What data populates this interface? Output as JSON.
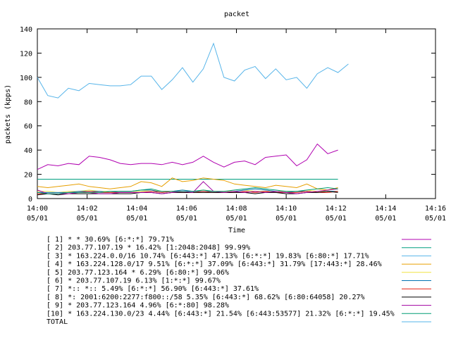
{
  "chart_data": {
    "type": "line",
    "title": "packet",
    "xlabel": "Time",
    "ylabel": "packets (kpps)",
    "ylim": [
      0,
      140
    ],
    "yticks": [
      "0",
      "20",
      "40",
      "60",
      "80",
      "100",
      "120",
      "140"
    ],
    "xlim": [
      "14:00",
      "14:16"
    ],
    "xticks": [
      {
        "time": "14:00",
        "date": "05/01"
      },
      {
        "time": "14:02",
        "date": "05/01"
      },
      {
        "time": "14:04",
        "date": "05/01"
      },
      {
        "time": "14:06",
        "date": "05/01"
      },
      {
        "time": "14:08",
        "date": "05/01"
      },
      {
        "time": "14:10",
        "date": "05/01"
      },
      {
        "time": "14:12",
        "date": "05/01"
      },
      {
        "time": "14:14",
        "date": "05/01"
      },
      {
        "time": "14:16",
        "date": "05/01"
      }
    ],
    "grid": false,
    "legend_position": "bottom",
    "x_minutes": [
      0,
      0.42,
      0.83,
      1.25,
      1.67,
      2.08,
      2.5,
      2.92,
      3.33,
      3.75,
      4.17,
      4.58,
      5,
      5.42,
      5.83,
      6.25,
      6.67,
      7.08,
      7.5,
      7.92,
      8.33,
      8.75,
      9.17,
      9.58,
      10,
      10.42,
      10.83,
      11.25,
      11.67,
      12.08,
      12.5,
      12.92,
      13.33,
      13.75,
      14.17,
      14.58
    ],
    "series": [
      {
        "label": "[ 1] * * 30.69%  [6:*:*] 79.71%",
        "color": "#b000b0",
        "values": [
          24,
          28,
          27,
          29,
          28,
          35,
          34,
          32,
          29,
          28,
          29,
          29,
          28,
          30,
          28,
          30,
          35,
          30,
          26,
          30,
          31,
          28,
          34,
          35,
          36,
          27,
          32,
          45,
          37,
          40,
          0,
          0,
          0,
          0,
          0,
          0
        ]
      },
      {
        "label": "[ 2] 203.77.107.19 * 16.42%  [1:2048:2048] 99.99%",
        "color": "#009f80",
        "values": [
          16,
          16,
          16,
          16,
          16,
          16,
          16,
          16,
          16,
          16,
          16,
          16,
          16,
          16,
          16,
          16,
          16,
          16,
          16,
          16,
          16,
          16,
          16,
          16,
          16,
          16,
          16,
          16,
          16,
          16,
          0,
          0,
          0,
          0,
          0,
          0
        ]
      },
      {
        "label": "[ 3] * 163.224.0.0/16 10.74%  [6:443:*] 47.13% [6:*:*] 19.83% [6:80:*] 17.71%",
        "color": "#56b4e9",
        "values": [
          100,
          85,
          83,
          91,
          89,
          95,
          94,
          93,
          93,
          94,
          101,
          101,
          90,
          98,
          108,
          96,
          107,
          128,
          100,
          97,
          106,
          109,
          99,
          107,
          98,
          100,
          91,
          103,
          108,
          104,
          111,
          0,
          0,
          0,
          0,
          0
        ]
      },
      {
        "label": "[ 4] * 163.224.128.0/17 9.51%  [6:*:*] 37.09% [6:443:*] 31.79% [17:443:*] 28.46%",
        "color": "#e69f00",
        "values": [
          10,
          9,
          10,
          11,
          12,
          10,
          9,
          8,
          9,
          10,
          14,
          13,
          10,
          17,
          14,
          15,
          17,
          16,
          15,
          12,
          11,
          10,
          9,
          11,
          10,
          9,
          12,
          8,
          7,
          9,
          0,
          0,
          0,
          0,
          0,
          0
        ]
      },
      {
        "label": "[ 5] 203.77.123.164 * 6.29%  [6:80:*] 99.06%",
        "color": "#f0e442",
        "values": [
          6,
          6,
          5,
          6,
          6,
          7,
          6,
          6,
          6,
          6,
          6,
          7,
          6,
          6,
          7,
          6,
          7,
          6,
          6,
          6,
          7,
          6,
          6,
          6,
          6,
          6,
          7,
          6,
          6,
          6,
          0,
          0,
          0,
          0,
          0,
          0
        ]
      },
      {
        "label": "[ 6] * 203.77.107.19 6.13%  [1:*:*] 99.67%",
        "color": "#0072b2",
        "values": [
          5,
          5,
          5,
          5,
          6,
          6,
          6,
          5,
          6,
          6,
          7,
          7,
          5,
          6,
          7,
          6,
          6,
          6,
          5,
          6,
          7,
          8,
          7,
          6,
          5,
          6,
          6,
          5,
          6,
          6,
          0,
          0,
          0,
          0,
          0,
          0
        ]
      },
      {
        "label": "[ 7] *:: *:: 5.49%  [6:*:*] 56.90% [6:443:*] 37.61%",
        "color": "#e51e10",
        "values": [
          4,
          4,
          4,
          5,
          5,
          6,
          5,
          5,
          5,
          5,
          5,
          6,
          5,
          6,
          5,
          5,
          6,
          5,
          5,
          5,
          6,
          5,
          6,
          5,
          5,
          5,
          6,
          5,
          5,
          6,
          0,
          0,
          0,
          0,
          0,
          0
        ]
      },
      {
        "label": "[ 8] *: 2001:6200:2277:f800::/58 5.35%  [6:443:*] 68.62% [6:80:64058] 20.27%",
        "color": "#000000",
        "values": [
          3,
          4,
          3,
          4,
          4,
          4,
          4,
          4,
          4,
          4,
          5,
          5,
          4,
          5,
          5,
          5,
          5,
          5,
          5,
          5,
          5,
          4,
          5,
          5,
          4,
          4,
          5,
          5,
          6,
          5,
          0,
          0,
          0,
          0,
          0,
          0
        ]
      },
      {
        "label": "[ 9] * 203.77.123.164 4.96%  [6:*:80] 98.28%",
        "color": "#a000a0",
        "values": [
          7,
          4,
          4,
          4,
          5,
          5,
          4,
          4,
          5,
          5,
          5,
          5,
          4,
          5,
          6,
          5,
          14,
          6,
          5,
          6,
          5,
          6,
          5,
          6,
          5,
          4,
          5,
          6,
          7,
          8,
          0,
          0,
          0,
          0,
          0,
          0
        ]
      },
      {
        "label": "[10] * 163.224.130.0/23 4.44%  [6:443:*] 21.54% [6:443:53577] 21.32% [6:*:*] 19.45%",
        "color": "#009e73",
        "values": [
          5,
          4,
          4,
          5,
          5,
          5,
          5,
          6,
          6,
          6,
          7,
          8,
          6,
          6,
          6,
          6,
          7,
          6,
          6,
          7,
          8,
          9,
          8,
          7,
          6,
          6,
          7,
          8,
          9,
          8,
          0,
          0,
          0,
          0,
          0,
          0
        ]
      },
      {
        "label": "TOTAL",
        "color": "#56b4e9",
        "values": []
      }
    ]
  }
}
